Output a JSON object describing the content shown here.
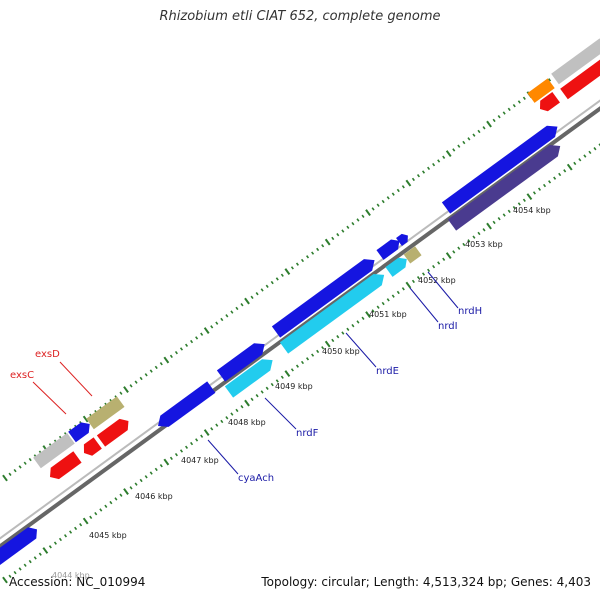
{
  "title": "Rhizobium etli CIAT 652, complete genome",
  "accession": "Accession: NC_010994",
  "topology": "Topology: circular; Length: 4,513,324 bp; Genes: 4,403",
  "colors": {
    "backbone_dark": "#666666",
    "backbone_light": "#bbbbbb",
    "tick": "#2e7d2e",
    "cds_forward": "#1515e0",
    "cds_reverse": "#4a3b8f",
    "cds_red": "#ee1111",
    "cds_grey": "#c0c0c0",
    "cds_olive": "#b8b070",
    "cds_orange": "#ff8800",
    "cds_cyan": "#22ccee",
    "gene_label_blue": "#1a1aa6",
    "gene_label_red": "#dd2222"
  },
  "scale": {
    "labels": [
      "4044 kbp",
      "4045 kbp",
      "4046 kbp",
      "4047 kbp",
      "4048 kbp",
      "4049 kbp",
      "4050 kbp",
      "4051 kbp",
      "4052 kbp",
      "4053 kbp",
      "4054 kbp"
    ]
  },
  "gene_labels": [
    {
      "name": "exsD",
      "color": "red"
    },
    {
      "name": "exsC",
      "color": "red"
    },
    {
      "name": "cyaAch",
      "color": "blue"
    },
    {
      "name": "nrdF",
      "color": "blue"
    },
    {
      "name": "nrdE",
      "color": "blue"
    },
    {
      "name": "nrdI",
      "color": "blue"
    },
    {
      "name": "nrdH",
      "color": "blue"
    }
  ]
}
